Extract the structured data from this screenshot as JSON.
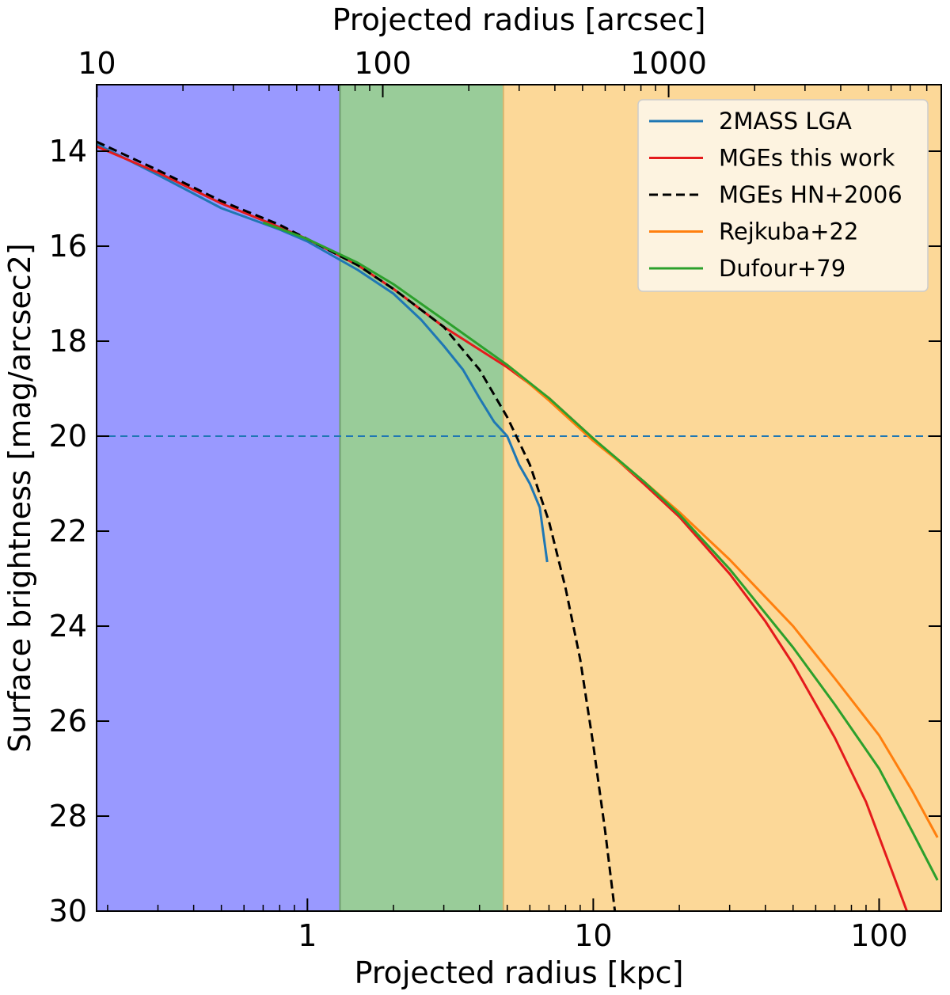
{
  "chart_data": {
    "type": "line",
    "xlabel": "Projected radius [kpc]",
    "x2label": "Projected radius [arcsec]",
    "ylabel": "Surface brightness [mag/arcsec2]",
    "x_scale": "log",
    "xlim": [
      0.183,
      165
    ],
    "ylim": [
      30,
      12.6
    ],
    "y_inverted": true,
    "x_ticks": [
      1,
      10,
      100
    ],
    "x_tick_labels": [
      "1",
      "10",
      "100"
    ],
    "x2_ticks": [
      10,
      100,
      1000
    ],
    "x2_tick_labels": [
      "10",
      "100",
      "1000"
    ],
    "arcsec_per_kpc": 54.5,
    "y_ticks": [
      14,
      16,
      18,
      20,
      22,
      24,
      26,
      28,
      30
    ],
    "y_tick_labels": [
      "14",
      "16",
      "18",
      "20",
      "22",
      "24",
      "26",
      "28",
      "30"
    ],
    "regions": [
      {
        "x_from": 0.183,
        "x_to": 1.3,
        "color": "#9999ff"
      },
      {
        "x_from": 1.3,
        "x_to": 4.85,
        "color": "#99cc99"
      },
      {
        "x_from": 4.85,
        "x_to": 165,
        "color": "#fcd898"
      }
    ],
    "hlines": [
      {
        "y": 20,
        "color": "#1f77b4",
        "dash": true
      }
    ],
    "legend_position": "top-right",
    "series": [
      {
        "name": "2MASS LGA",
        "color": "#1f77b4",
        "dash": false,
        "x": [
          0.183,
          0.3,
          0.5,
          0.8,
          1.0,
          1.5,
          2.0,
          2.5,
          3.0,
          3.5,
          4.0,
          4.5,
          5.0,
          5.5,
          6.0,
          6.5,
          6.9
        ],
        "y": [
          13.85,
          14.5,
          15.2,
          15.65,
          15.9,
          16.5,
          17.0,
          17.55,
          18.1,
          18.6,
          19.2,
          19.7,
          20.0,
          20.6,
          21.0,
          21.5,
          22.65
        ]
      },
      {
        "name": "MGEs this work",
        "color": "#e41a1c",
        "dash": false,
        "x": [
          0.183,
          0.3,
          0.5,
          0.8,
          1.0,
          1.5,
          2.0,
          3.0,
          5.0,
          7.0,
          10.0,
          15.0,
          20.0,
          30.0,
          40.0,
          50.0,
          70.0,
          90.0,
          110.0,
          125.0
        ],
        "y": [
          13.9,
          14.45,
          15.1,
          15.6,
          15.85,
          16.4,
          16.9,
          17.7,
          18.55,
          19.2,
          20.05,
          21.0,
          21.7,
          22.9,
          23.9,
          24.8,
          26.35,
          27.7,
          29.1,
          30.0
        ]
      },
      {
        "name": "MGEs HN+2006",
        "color": "#000000",
        "dash": true,
        "x": [
          0.183,
          0.3,
          0.5,
          0.8,
          1.0,
          1.5,
          2.0,
          3.0,
          4.0,
          5.0,
          6.0,
          7.0,
          8.0,
          9.0,
          10.0,
          11.0,
          11.9
        ],
        "y": [
          13.8,
          14.4,
          15.05,
          15.55,
          15.85,
          16.4,
          16.9,
          17.7,
          18.6,
          19.6,
          20.6,
          21.8,
          23.2,
          24.7,
          26.5,
          28.3,
          30.0
        ]
      },
      {
        "name": "Rejkuba+22",
        "color": "#ff7f0e",
        "dash": false,
        "x": [
          5.0,
          7.0,
          10.0,
          15.0,
          20.0,
          30.0,
          50.0,
          70.0,
          100.0,
          130.0,
          160.0
        ],
        "y": [
          18.5,
          19.25,
          20.1,
          20.95,
          21.6,
          22.6,
          24.0,
          25.1,
          26.3,
          27.45,
          28.45
        ]
      },
      {
        "name": "Dufour+79",
        "color": "#2ca02c",
        "dash": false,
        "x": [
          0.7,
          1.0,
          1.5,
          2.0,
          3.0,
          5.0,
          7.0,
          10.0,
          15.0,
          20.0,
          30.0,
          50.0,
          70.0,
          100.0,
          130.0,
          160.0
        ],
        "y": [
          15.5,
          15.85,
          16.35,
          16.8,
          17.55,
          18.5,
          19.2,
          20.05,
          20.95,
          21.65,
          22.8,
          24.45,
          25.65,
          27.0,
          28.3,
          29.35
        ]
      }
    ]
  }
}
